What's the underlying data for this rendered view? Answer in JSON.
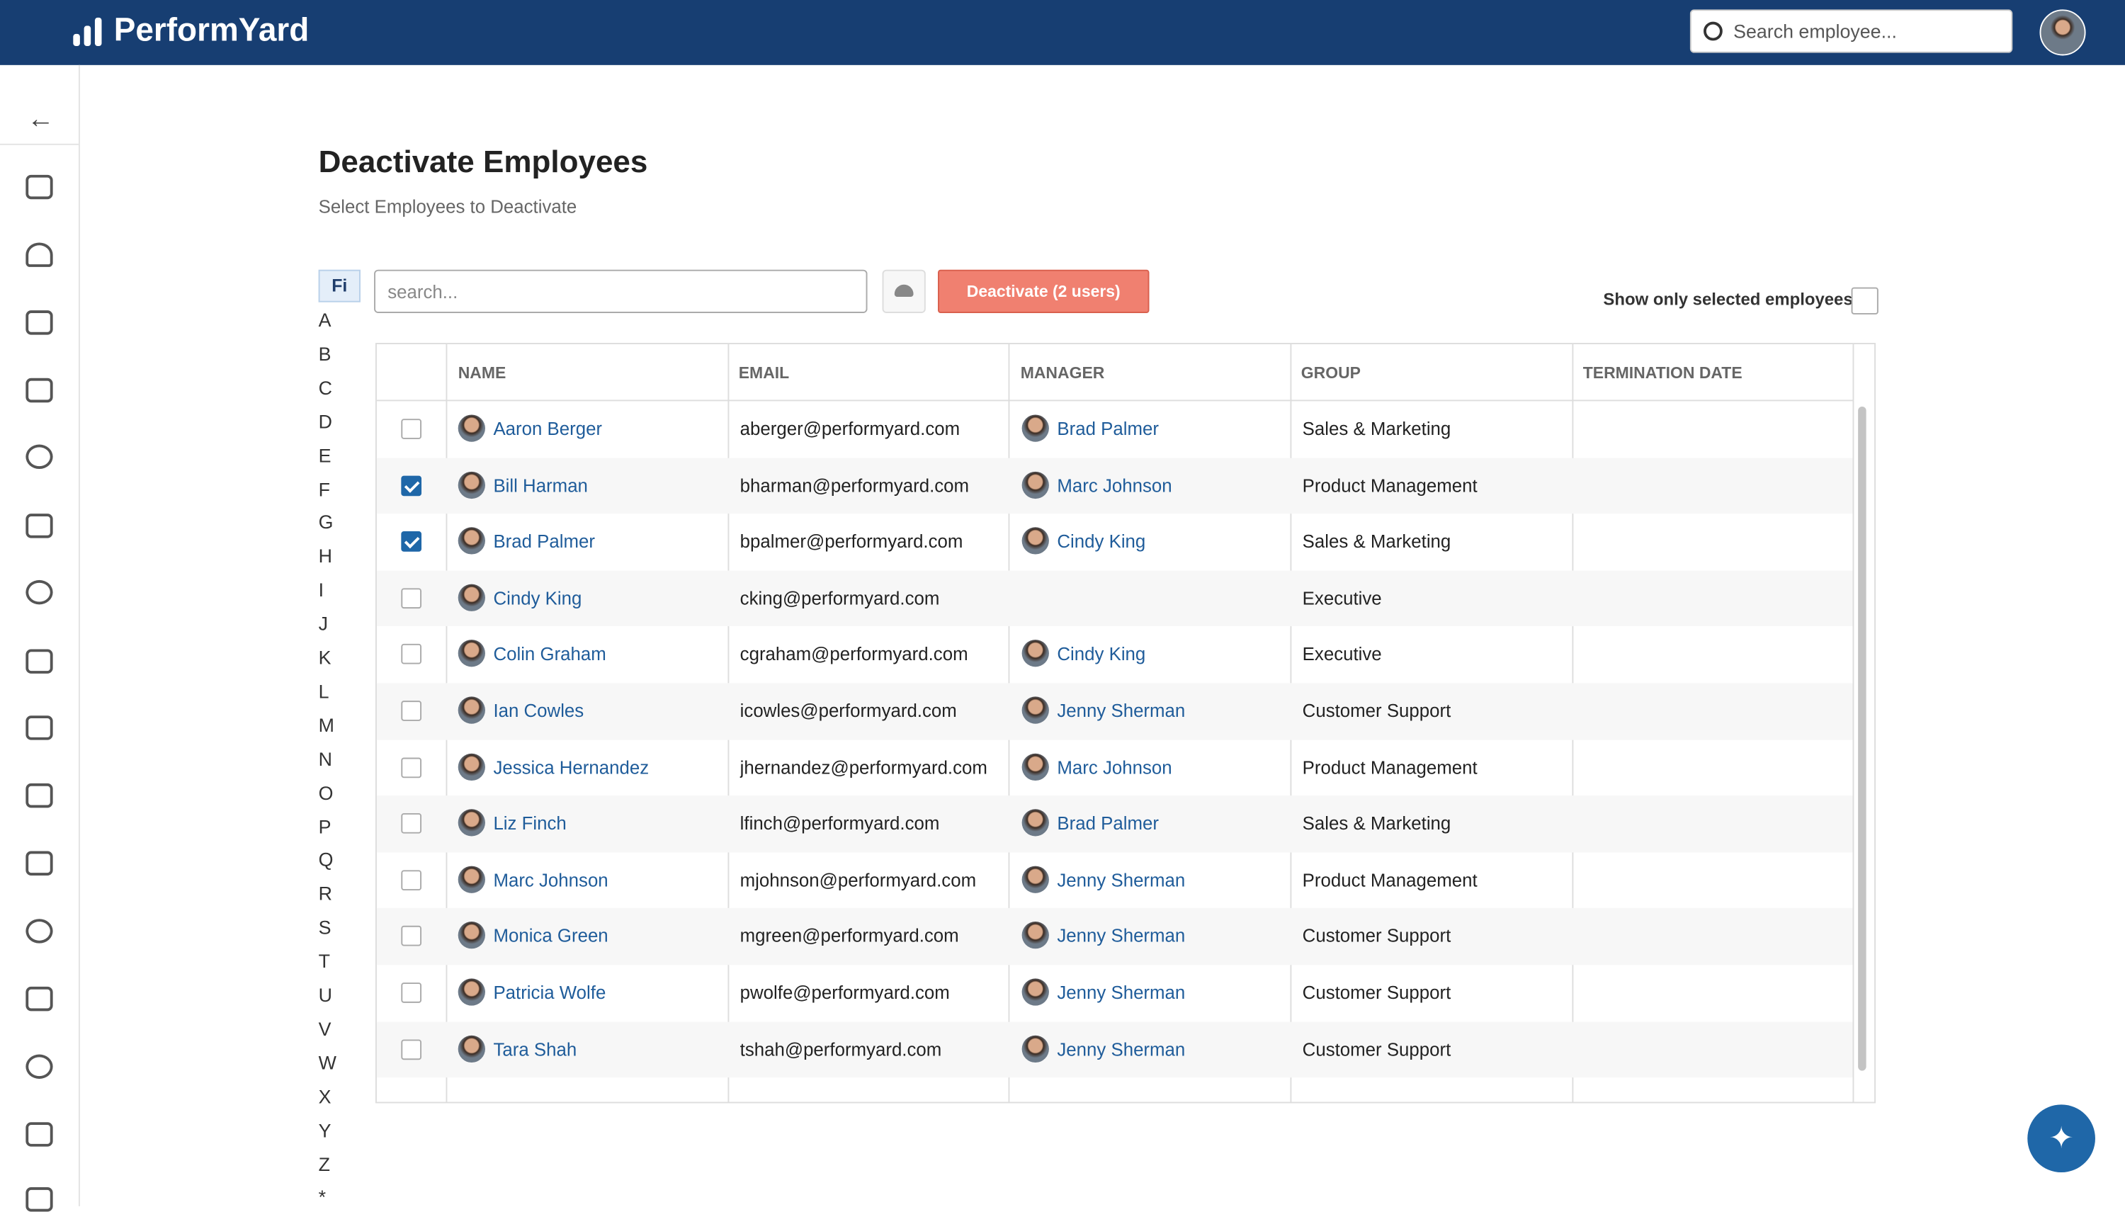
{
  "header": {
    "logo": "PerformYard",
    "search_placeholder": "Search employee..."
  },
  "page": {
    "title": "Deactivate Employees",
    "subtitle": "Select Employees to Deactivate"
  },
  "filter": {
    "active": "Fi",
    "letters": [
      "A",
      "B",
      "C",
      "D",
      "E",
      "F",
      "G",
      "H",
      "I",
      "J",
      "K",
      "L",
      "M",
      "N",
      "O",
      "P",
      "Q",
      "R",
      "S",
      "T",
      "U",
      "V",
      "W",
      "X",
      "Y",
      "Z",
      "*"
    ]
  },
  "toolbar": {
    "search_placeholder": "search...",
    "deactivate_button": "Deactivate (2 users)",
    "show_selected_label": "Show only selected employees"
  },
  "table": {
    "columns": [
      "NAME",
      "EMAIL",
      "MANAGER",
      "GROUP",
      "TERMINATION DATE"
    ],
    "rows": [
      {
        "name": "Aaron Berger",
        "email": "aberger@performyard.com",
        "manager": "Brad Palmer",
        "group": "Sales & Marketing",
        "selected": false
      },
      {
        "name": "Bill Harman",
        "email": "bharman@performyard.com",
        "manager": "Marc Johnson",
        "group": "Product Management",
        "selected": true
      },
      {
        "name": "Brad Palmer",
        "email": "bpalmer@performyard.com",
        "manager": "Cindy King",
        "group": "Sales & Marketing",
        "selected": true
      },
      {
        "name": "Cindy King",
        "email": "cking@performyard.com",
        "group": "Executive",
        "selected": false
      },
      {
        "name": "Colin Graham",
        "email": "cgraham@performyard.com",
        "manager": "Cindy King",
        "group": "Executive",
        "selected": false
      },
      {
        "name": "Ian Cowles",
        "email": "icowles@performyard.com",
        "manager": "Jenny Sherman",
        "group": "Customer Support",
        "selected": false
      },
      {
        "name": "Jessica Hernandez",
        "email": "jhernandez@performyard.com",
        "manager": "Marc Johnson",
        "group": "Product Management",
        "selected": false
      },
      {
        "name": "Liz Finch",
        "email": "lfinch@performyard.com",
        "manager": "Brad Palmer",
        "group": "Sales & Marketing",
        "selected": false
      },
      {
        "name": "Marc Johnson",
        "email": "mjohnson@performyard.com",
        "manager": "Jenny Sherman",
        "group": "Product Management",
        "selected": false
      },
      {
        "name": "Monica Green",
        "email": "mgreen@performyard.com",
        "manager": "Jenny Sherman",
        "group": "Customer Support",
        "selected": false
      },
      {
        "name": "Patricia Wolfe",
        "email": "pwolfe@performyard.com",
        "manager": "Jenny Sherman",
        "group": "Customer Support",
        "selected": false
      },
      {
        "name": "Tara Shah",
        "email": "tshah@performyard.com",
        "manager": "Jenny Sherman",
        "group": "Customer Support",
        "selected": false
      }
    ]
  }
}
